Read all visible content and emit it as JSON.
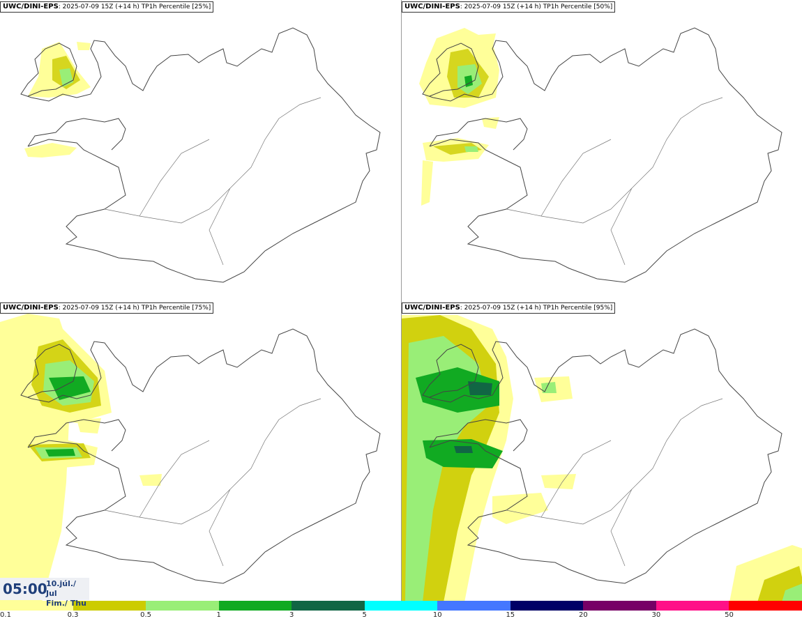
{
  "panels": [
    {
      "model": "UWC/DINI-EPS",
      "run": ": 2025-07-09 15Z (+14 h)",
      "param": "TP1h Percentile [25%]"
    },
    {
      "model": "UWC/DINI-EPS",
      "run": ": 2025-07-09 15Z (+14 h)",
      "param": "TP1h Percentile [50%]"
    },
    {
      "model": "UWC/DINI-EPS",
      "run": ": 2025-07-09 15Z (+14 h)",
      "param": "TP1h Percentile [75%]"
    },
    {
      "model": "UWC/DINI-EPS",
      "run": ": 2025-07-09 15Z (+14 h)",
      "param": "TP1h Percentile [95%]"
    }
  ],
  "time": {
    "hour": "05:00",
    "date_line1": "10.júl./ Jul",
    "date_line2": "Fim./ Thu"
  },
  "legend": {
    "ticks": [
      "0.1",
      "0.3",
      "0.5",
      "1",
      "3",
      "5",
      "10",
      "15",
      "20",
      "30",
      "50"
    ],
    "colors": [
      "#ffff99",
      "#cccc00",
      "#99ee77",
      "#11aa22",
      "#116644",
      "#00ffff",
      "#4477ff",
      "#000066",
      "#770066",
      "#ff1188",
      "#ff0000"
    ]
  }
}
